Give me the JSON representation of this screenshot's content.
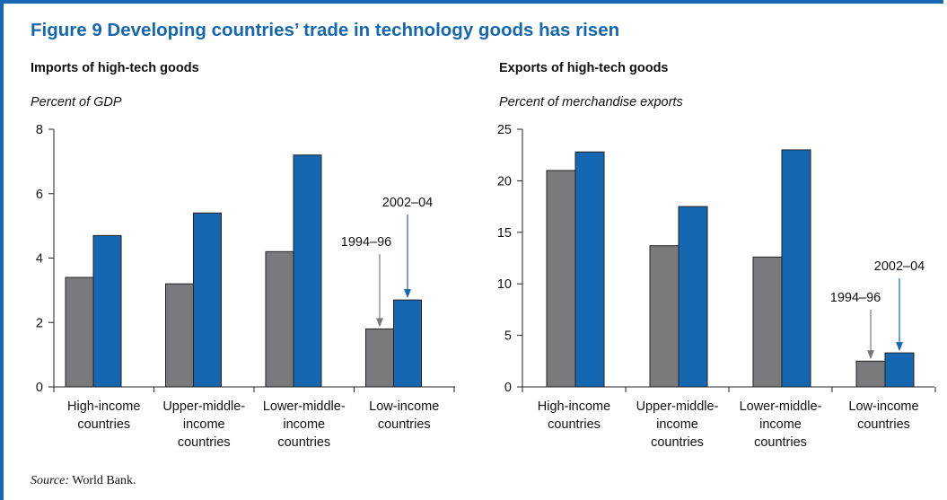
{
  "figure": {
    "title": "Figure 9  Developing countries’ trade in technology goods has risen",
    "source_label": "Source:",
    "source_text": "World Bank."
  },
  "colors": {
    "accent": "#1467b0",
    "series_1994_96": "#7a7a7d",
    "series_2002_04": "#1467b0"
  },
  "chart_data": [
    {
      "type": "bar",
      "title": "Imports of high-tech goods",
      "ylabel": "Percent of GDP",
      "categories": [
        [
          "High-income",
          "countries"
        ],
        [
          "Upper-middle-",
          "income",
          "countries"
        ],
        [
          "Lower-middle-",
          "income",
          "countries"
        ],
        [
          "Low-income",
          "countries"
        ]
      ],
      "series": [
        {
          "name": "1994–96",
          "values": [
            3.4,
            3.2,
            4.2,
            1.8
          ]
        },
        {
          "name": "2002–04",
          "values": [
            4.7,
            5.4,
            7.2,
            2.7
          ]
        }
      ],
      "ylim": [
        0,
        8
      ],
      "yticks": [
        0,
        2,
        4,
        6,
        8
      ],
      "grid": false
    },
    {
      "type": "bar",
      "title": "Exports of high-tech goods",
      "ylabel": "Percent of merchandise exports",
      "categories": [
        [
          "High-income",
          "countries"
        ],
        [
          "Upper-middle-",
          "income",
          "countries"
        ],
        [
          "Lower-middle-",
          "income",
          "countries"
        ],
        [
          "Low-income",
          "countries"
        ]
      ],
      "series": [
        {
          "name": "1994–96",
          "values": [
            21.0,
            13.7,
            12.6,
            2.5
          ]
        },
        {
          "name": "2002–04",
          "values": [
            22.8,
            17.5,
            23.0,
            3.3
          ]
        }
      ],
      "ylim": [
        0,
        25
      ],
      "yticks": [
        0,
        5,
        10,
        15,
        20,
        25
      ],
      "grid": false
    }
  ]
}
